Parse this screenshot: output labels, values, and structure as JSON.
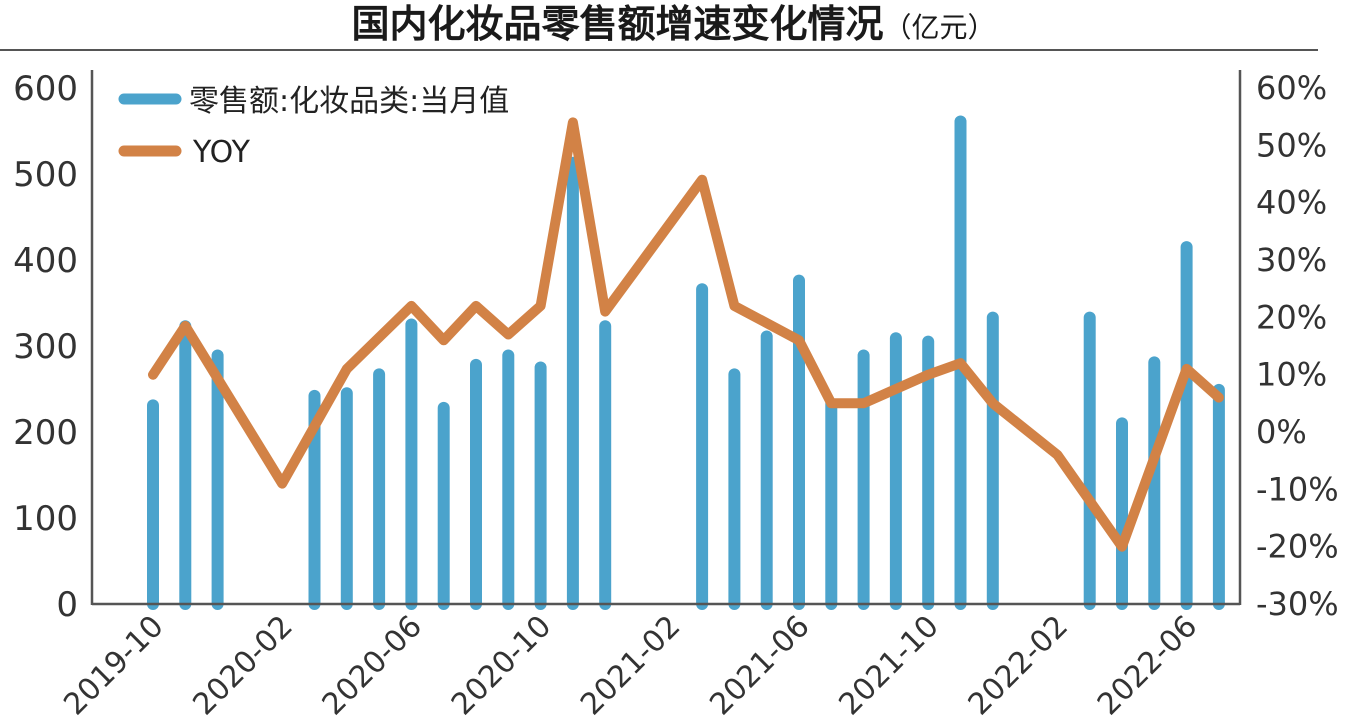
{
  "title": "国内化妆品零售额增速变化情况",
  "unit": "（亿元）",
  "chart_data": {
    "type": "bar+line",
    "x": [
      "2019-10",
      "2019-11",
      "2019-12",
      "2020-01",
      "2020-02",
      "2020-03",
      "2020-04",
      "2020-05",
      "2020-06",
      "2020-07",
      "2020-08",
      "2020-09",
      "2020-10",
      "2020-11",
      "2020-12",
      "2021-01",
      "2021-02",
      "2021-03",
      "2021-04",
      "2021-05",
      "2021-06",
      "2021-07",
      "2021-08",
      "2021-09",
      "2021-10",
      "2021-11",
      "2021-12",
      "2022-01",
      "2022-02",
      "2022-03",
      "2022-04",
      "2022-05",
      "2022-06",
      "2022-07"
    ],
    "x_tick_labels": [
      "2019-10",
      "2020-02",
      "2020-06",
      "2020-10",
      "2021-02",
      "2021-06",
      "2021-10",
      "2022-02",
      "2022-06"
    ],
    "series": [
      {
        "name": "零售额:化妆品类:当月值",
        "kind": "bar",
        "axis": "left",
        "color": "#4BA3CC",
        "values": [
          238,
          330,
          296,
          null,
          null,
          249,
          252,
          274,
          332,
          235,
          285,
          296,
          282,
          520,
          330,
          null,
          null,
          373,
          274,
          318,
          383,
          240,
          296,
          316,
          312,
          568,
          340,
          null,
          null,
          340,
          217,
          288,
          422,
          256
        ]
      },
      {
        "name": "YOY",
        "kind": "line",
        "axis": "right",
        "color": "#D28246",
        "values": [
          10,
          18.5,
          null,
          null,
          -9,
          null,
          11,
          null,
          22,
          16,
          22,
          17,
          22,
          54,
          21,
          null,
          null,
          44,
          22,
          null,
          16,
          5,
          5,
          null,
          10,
          12,
          5,
          null,
          -4,
          null,
          -20,
          null,
          11,
          6
        ]
      }
    ],
    "y_left": {
      "ylim": [
        0,
        600
      ],
      "ticks": [
        0,
        100,
        200,
        300,
        400,
        500,
        600
      ]
    },
    "y_right": {
      "ylim": [
        -30,
        60
      ],
      "ticks": [
        "-30%",
        "-20%",
        "-10%",
        "0%",
        "10%",
        "20%",
        "30%",
        "40%",
        "50%",
        "60%"
      ]
    },
    "legend": {
      "placement": "top-left"
    },
    "grid": false
  }
}
